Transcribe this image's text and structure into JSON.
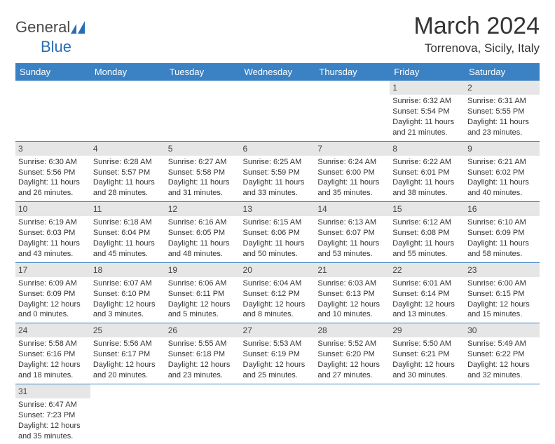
{
  "logo": {
    "general": "General",
    "blue": "Blue"
  },
  "title": "March 2024",
  "location": "Torrenova, Sicily, Italy",
  "colors": {
    "header_bg": "#3b82c4",
    "header_text": "#ffffff",
    "daynum_bg": "#e6e6e6",
    "cell_border": "#3b82c4",
    "logo_blue": "#2a6db5",
    "logo_gray": "#4a4a4a"
  },
  "dayHeaders": [
    "Sunday",
    "Monday",
    "Tuesday",
    "Wednesday",
    "Thursday",
    "Friday",
    "Saturday"
  ],
  "weeks": [
    [
      null,
      null,
      null,
      null,
      null,
      {
        "n": "1",
        "sr": "Sunrise: 6:32 AM",
        "ss": "Sunset: 5:54 PM",
        "d1": "Daylight: 11 hours",
        "d2": "and 21 minutes."
      },
      {
        "n": "2",
        "sr": "Sunrise: 6:31 AM",
        "ss": "Sunset: 5:55 PM",
        "d1": "Daylight: 11 hours",
        "d2": "and 23 minutes."
      }
    ],
    [
      {
        "n": "3",
        "sr": "Sunrise: 6:30 AM",
        "ss": "Sunset: 5:56 PM",
        "d1": "Daylight: 11 hours",
        "d2": "and 26 minutes."
      },
      {
        "n": "4",
        "sr": "Sunrise: 6:28 AM",
        "ss": "Sunset: 5:57 PM",
        "d1": "Daylight: 11 hours",
        "d2": "and 28 minutes."
      },
      {
        "n": "5",
        "sr": "Sunrise: 6:27 AM",
        "ss": "Sunset: 5:58 PM",
        "d1": "Daylight: 11 hours",
        "d2": "and 31 minutes."
      },
      {
        "n": "6",
        "sr": "Sunrise: 6:25 AM",
        "ss": "Sunset: 5:59 PM",
        "d1": "Daylight: 11 hours",
        "d2": "and 33 minutes."
      },
      {
        "n": "7",
        "sr": "Sunrise: 6:24 AM",
        "ss": "Sunset: 6:00 PM",
        "d1": "Daylight: 11 hours",
        "d2": "and 35 minutes."
      },
      {
        "n": "8",
        "sr": "Sunrise: 6:22 AM",
        "ss": "Sunset: 6:01 PM",
        "d1": "Daylight: 11 hours",
        "d2": "and 38 minutes."
      },
      {
        "n": "9",
        "sr": "Sunrise: 6:21 AM",
        "ss": "Sunset: 6:02 PM",
        "d1": "Daylight: 11 hours",
        "d2": "and 40 minutes."
      }
    ],
    [
      {
        "n": "10",
        "sr": "Sunrise: 6:19 AM",
        "ss": "Sunset: 6:03 PM",
        "d1": "Daylight: 11 hours",
        "d2": "and 43 minutes."
      },
      {
        "n": "11",
        "sr": "Sunrise: 6:18 AM",
        "ss": "Sunset: 6:04 PM",
        "d1": "Daylight: 11 hours",
        "d2": "and 45 minutes."
      },
      {
        "n": "12",
        "sr": "Sunrise: 6:16 AM",
        "ss": "Sunset: 6:05 PM",
        "d1": "Daylight: 11 hours",
        "d2": "and 48 minutes."
      },
      {
        "n": "13",
        "sr": "Sunrise: 6:15 AM",
        "ss": "Sunset: 6:06 PM",
        "d1": "Daylight: 11 hours",
        "d2": "and 50 minutes."
      },
      {
        "n": "14",
        "sr": "Sunrise: 6:13 AM",
        "ss": "Sunset: 6:07 PM",
        "d1": "Daylight: 11 hours",
        "d2": "and 53 minutes."
      },
      {
        "n": "15",
        "sr": "Sunrise: 6:12 AM",
        "ss": "Sunset: 6:08 PM",
        "d1": "Daylight: 11 hours",
        "d2": "and 55 minutes."
      },
      {
        "n": "16",
        "sr": "Sunrise: 6:10 AM",
        "ss": "Sunset: 6:09 PM",
        "d1": "Daylight: 11 hours",
        "d2": "and 58 minutes."
      }
    ],
    [
      {
        "n": "17",
        "sr": "Sunrise: 6:09 AM",
        "ss": "Sunset: 6:09 PM",
        "d1": "Daylight: 12 hours",
        "d2": "and 0 minutes."
      },
      {
        "n": "18",
        "sr": "Sunrise: 6:07 AM",
        "ss": "Sunset: 6:10 PM",
        "d1": "Daylight: 12 hours",
        "d2": "and 3 minutes."
      },
      {
        "n": "19",
        "sr": "Sunrise: 6:06 AM",
        "ss": "Sunset: 6:11 PM",
        "d1": "Daylight: 12 hours",
        "d2": "and 5 minutes."
      },
      {
        "n": "20",
        "sr": "Sunrise: 6:04 AM",
        "ss": "Sunset: 6:12 PM",
        "d1": "Daylight: 12 hours",
        "d2": "and 8 minutes."
      },
      {
        "n": "21",
        "sr": "Sunrise: 6:03 AM",
        "ss": "Sunset: 6:13 PM",
        "d1": "Daylight: 12 hours",
        "d2": "and 10 minutes."
      },
      {
        "n": "22",
        "sr": "Sunrise: 6:01 AM",
        "ss": "Sunset: 6:14 PM",
        "d1": "Daylight: 12 hours",
        "d2": "and 13 minutes."
      },
      {
        "n": "23",
        "sr": "Sunrise: 6:00 AM",
        "ss": "Sunset: 6:15 PM",
        "d1": "Daylight: 12 hours",
        "d2": "and 15 minutes."
      }
    ],
    [
      {
        "n": "24",
        "sr": "Sunrise: 5:58 AM",
        "ss": "Sunset: 6:16 PM",
        "d1": "Daylight: 12 hours",
        "d2": "and 18 minutes."
      },
      {
        "n": "25",
        "sr": "Sunrise: 5:56 AM",
        "ss": "Sunset: 6:17 PM",
        "d1": "Daylight: 12 hours",
        "d2": "and 20 minutes."
      },
      {
        "n": "26",
        "sr": "Sunrise: 5:55 AM",
        "ss": "Sunset: 6:18 PM",
        "d1": "Daylight: 12 hours",
        "d2": "and 23 minutes."
      },
      {
        "n": "27",
        "sr": "Sunrise: 5:53 AM",
        "ss": "Sunset: 6:19 PM",
        "d1": "Daylight: 12 hours",
        "d2": "and 25 minutes."
      },
      {
        "n": "28",
        "sr": "Sunrise: 5:52 AM",
        "ss": "Sunset: 6:20 PM",
        "d1": "Daylight: 12 hours",
        "d2": "and 27 minutes."
      },
      {
        "n": "29",
        "sr": "Sunrise: 5:50 AM",
        "ss": "Sunset: 6:21 PM",
        "d1": "Daylight: 12 hours",
        "d2": "and 30 minutes."
      },
      {
        "n": "30",
        "sr": "Sunrise: 5:49 AM",
        "ss": "Sunset: 6:22 PM",
        "d1": "Daylight: 12 hours",
        "d2": "and 32 minutes."
      }
    ],
    [
      {
        "n": "31",
        "sr": "Sunrise: 6:47 AM",
        "ss": "Sunset: 7:23 PM",
        "d1": "Daylight: 12 hours",
        "d2": "and 35 minutes."
      },
      null,
      null,
      null,
      null,
      null,
      null
    ]
  ]
}
